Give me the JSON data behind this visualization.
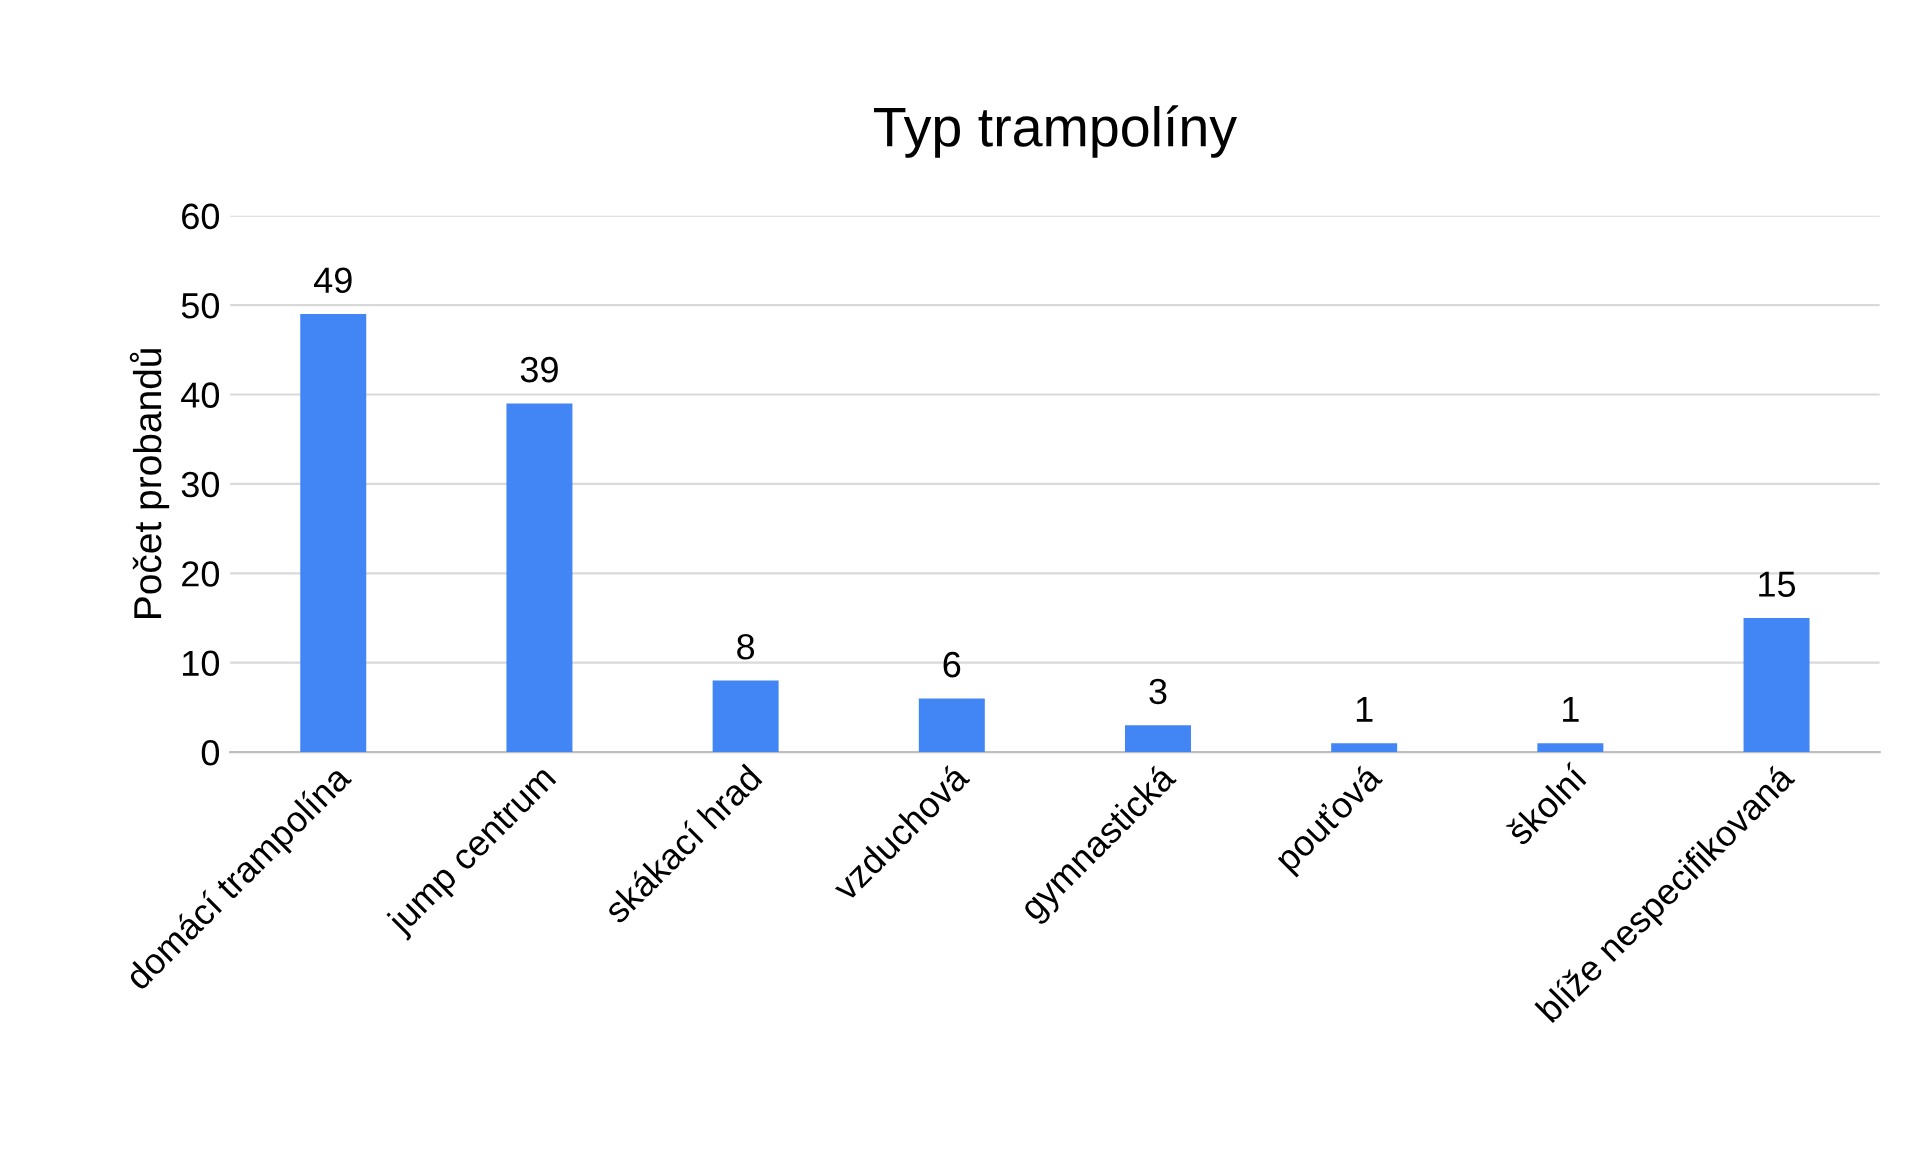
{
  "chart_data": {
    "type": "bar",
    "title": "Typ trampolíny",
    "ylabel": "Počet probandů",
    "categories": [
      "domácí trampolína",
      "jump centrum",
      "skákací hrad",
      "vzduchová",
      "gymnastická",
      "pouťová",
      "školní",
      "blíže nespecifikovaná"
    ],
    "values": [
      49,
      39,
      8,
      6,
      3,
      1,
      1,
      15
    ],
    "color": "#4285f4",
    "ylim": [
      0,
      60
    ],
    "yticks": [
      0,
      10,
      20,
      30,
      40,
      50,
      60
    ],
    "grid": "y",
    "data_labels": true
  }
}
